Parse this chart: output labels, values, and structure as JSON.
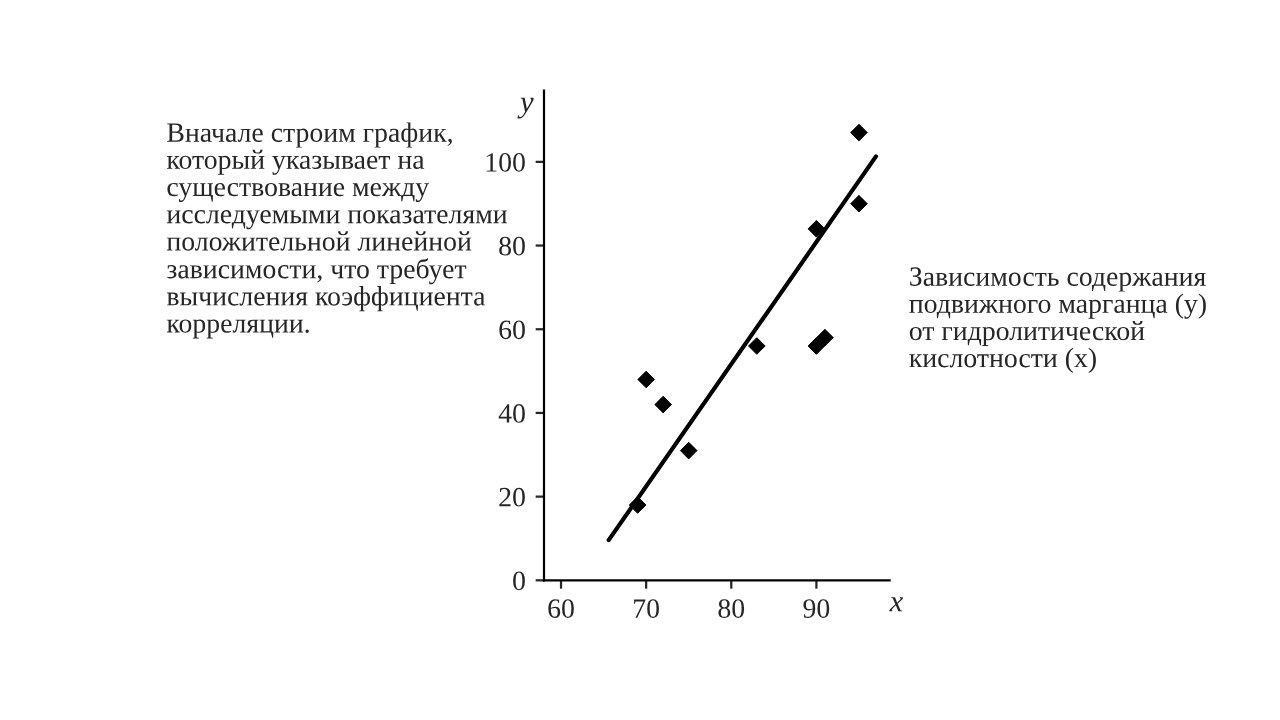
{
  "chart_data": {
    "type": "scatter",
    "xlabel": "x",
    "ylabel": "y",
    "xlim": [
      58,
      98.6
    ],
    "ylim": [
      0,
      117
    ],
    "xticks": [
      60,
      70,
      80,
      90
    ],
    "yticks": [
      0,
      20,
      40,
      60,
      80,
      100
    ],
    "grid": false,
    "series": [
      {
        "marker": "diamond",
        "color": "#000000",
        "x": [
          69,
          70,
          72,
          75,
          83,
          90,
          90,
          91,
          95,
          95
        ],
        "values": [
          18,
          48,
          42,
          31,
          56,
          84,
          56,
          58,
          107,
          90
        ]
      },
      {
        "type": "line",
        "marker": "none",
        "color": "#000000",
        "line_style": "solid",
        "x": [
          65.6,
          97
        ],
        "values": [
          9.6,
          101.3
        ]
      }
    ],
    "annotations": [
      "Вначале строим график, который указывает на существование между исследуемыми показателями положительной линейной зависимости, что требует вычисления коэффициента корреляции.",
      "Зависимость содержания подвижного марганца (y) от гидролитической кислотности (x)"
    ]
  }
}
